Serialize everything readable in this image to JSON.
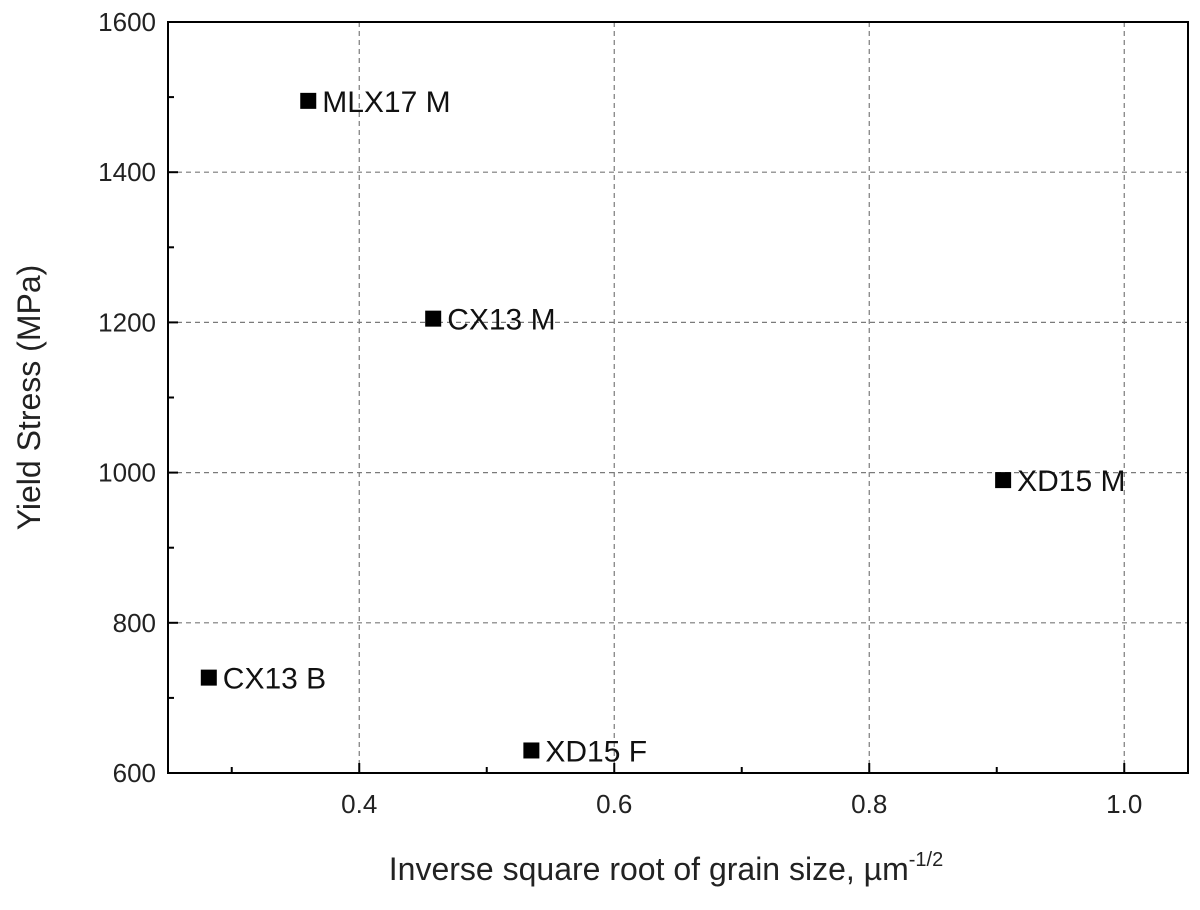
{
  "chart_data": {
    "type": "scatter",
    "title": "",
    "xlabel": "Inverse square root of grain size, µm",
    "xlabel_superscript": "-1/2",
    "ylabel": "Yield Stress (MPa)",
    "xlim": [
      0.25,
      1.05
    ],
    "ylim": [
      600,
      1600
    ],
    "x_ticks": [
      0.4,
      0.6,
      0.8,
      1.0
    ],
    "x_tick_labels": [
      "0.4",
      "0.6",
      "0.8",
      "1.0"
    ],
    "y_ticks": [
      600,
      800,
      1000,
      1200,
      1400,
      1600
    ],
    "y_tick_labels": [
      "600",
      "800",
      "1000",
      "1200",
      "1400",
      "1600"
    ],
    "grid": true,
    "marker": "square",
    "marker_color": "#000000",
    "points": [
      {
        "label": "MLX17 M",
        "x": 0.36,
        "y": 1495
      },
      {
        "label": "CX13 M",
        "x": 0.458,
        "y": 1205
      },
      {
        "label": "XD15 M",
        "x": 0.905,
        "y": 990
      },
      {
        "label": "CX13 B",
        "x": 0.282,
        "y": 727
      },
      {
        "label": "XD15 F",
        "x": 0.535,
        "y": 630
      }
    ]
  }
}
